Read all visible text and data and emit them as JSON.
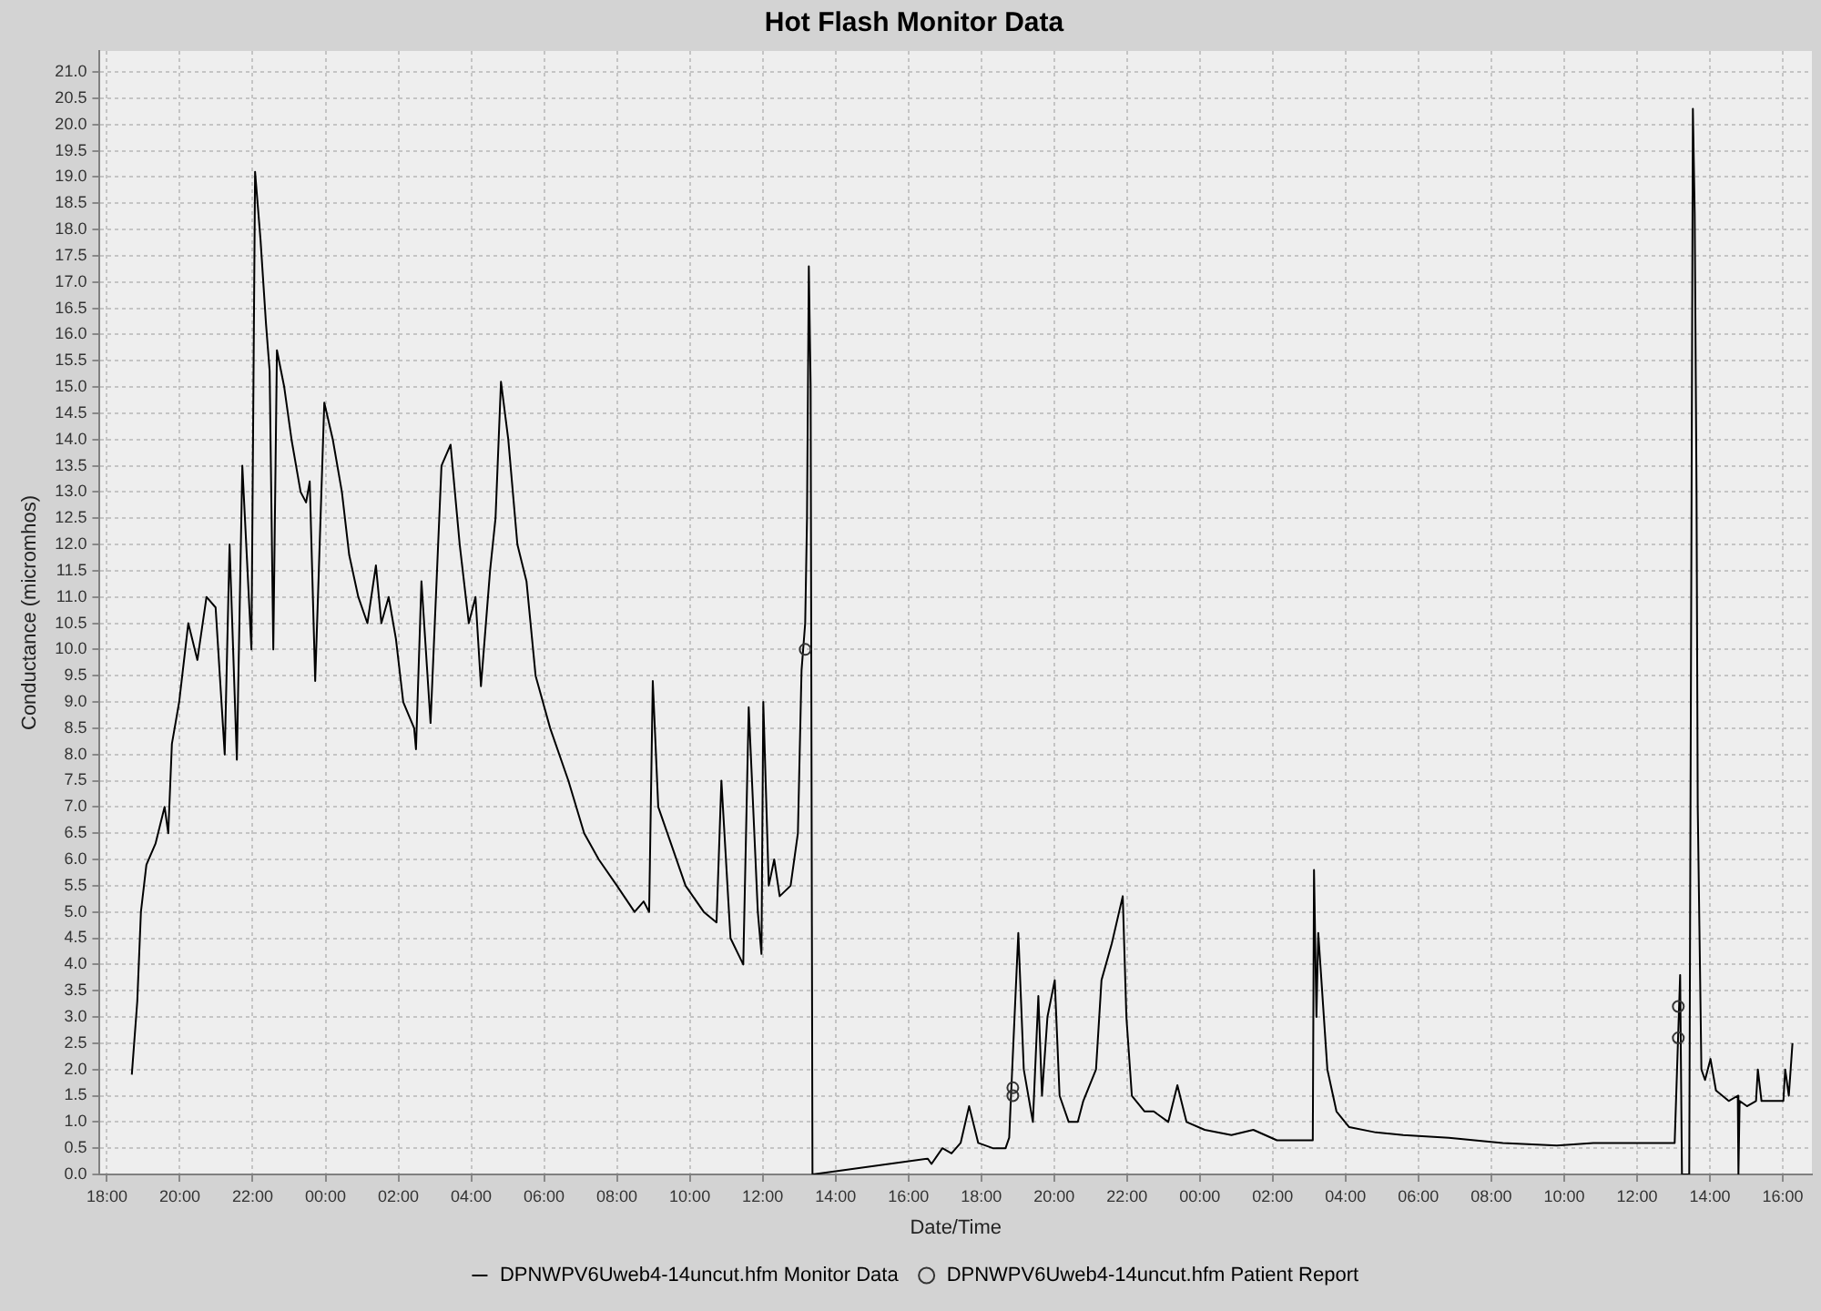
{
  "chart_data": {
    "type": "line",
    "title": "Hot Flash Monitor Data",
    "xlabel": "Date/Time",
    "ylabel": "Conductance (micromhos)",
    "xlim": [
      "--01-01T17:48",
      "--01-03T16:48"
    ],
    "ylim": [
      0,
      21.4
    ],
    "xticks": [
      {
        "value": "--01-01T18:00",
        "label": "18:00"
      },
      {
        "value": "--01-01T20:00",
        "label": "20:00"
      },
      {
        "value": "--01-01T22:00",
        "label": "22:00"
      },
      {
        "value": "--01-02T00:00",
        "label": "00:00"
      },
      {
        "value": "--01-02T02:00",
        "label": "02:00"
      },
      {
        "value": "--01-02T04:00",
        "label": "04:00"
      },
      {
        "value": "--01-02T06:00",
        "label": "06:00"
      },
      {
        "value": "--01-02T08:00",
        "label": "08:00"
      },
      {
        "value": "--01-02T10:00",
        "label": "10:00"
      },
      {
        "value": "--01-02T12:00",
        "label": "12:00"
      },
      {
        "value": "--01-02T14:00",
        "label": "14:00"
      },
      {
        "value": "--01-02T16:00",
        "label": "16:00"
      },
      {
        "value": "--01-02T18:00",
        "label": "18:00"
      },
      {
        "value": "--01-02T20:00",
        "label": "20:00"
      },
      {
        "value": "--01-02T22:00",
        "label": "22:00"
      },
      {
        "value": "--01-03T00:00",
        "label": "00:00"
      },
      {
        "value": "--01-03T02:00",
        "label": "02:00"
      },
      {
        "value": "--01-03T04:00",
        "label": "04:00"
      },
      {
        "value": "--01-03T06:00",
        "label": "06:00"
      },
      {
        "value": "--01-03T08:00",
        "label": "08:00"
      },
      {
        "value": "--01-03T10:00",
        "label": "10:00"
      },
      {
        "value": "--01-03T12:00",
        "label": "12:00"
      },
      {
        "value": "--01-03T14:00",
        "label": "14:00"
      },
      {
        "value": "--01-03T16:00",
        "label": "16:00"
      }
    ],
    "yticks": [
      {
        "value": 0,
        "label": "0.0"
      },
      {
        "value": 0.5,
        "label": "0.5"
      },
      {
        "value": 1,
        "label": "1.0"
      },
      {
        "value": 1.5,
        "label": "1.5"
      },
      {
        "value": 2,
        "label": "2.0"
      },
      {
        "value": 2.5,
        "label": "2.5"
      },
      {
        "value": 3,
        "label": "3.0"
      },
      {
        "value": 3.5,
        "label": "3.5"
      },
      {
        "value": 4,
        "label": "4.0"
      },
      {
        "value": 4.5,
        "label": "4.5"
      },
      {
        "value": 5,
        "label": "5.0"
      },
      {
        "value": 5.5,
        "label": "5.5"
      },
      {
        "value": 6,
        "label": "6.0"
      },
      {
        "value": 6.5,
        "label": "6.5"
      },
      {
        "value": 7,
        "label": "7.0"
      },
      {
        "value": 7.5,
        "label": "7.5"
      },
      {
        "value": 8,
        "label": "8.0"
      },
      {
        "value": 8.5,
        "label": "8.5"
      },
      {
        "value": 9,
        "label": "9.0"
      },
      {
        "value": 9.5,
        "label": "9.5"
      },
      {
        "value": 10,
        "label": "10.0"
      },
      {
        "value": 10.5,
        "label": "10.5"
      },
      {
        "value": 11,
        "label": "11.0"
      },
      {
        "value": 11.5,
        "label": "11.5"
      },
      {
        "value": 12,
        "label": "12.0"
      },
      {
        "value": 12.5,
        "label": "12.5"
      },
      {
        "value": 13,
        "label": "13.0"
      },
      {
        "value": 13.5,
        "label": "13.5"
      },
      {
        "value": 14,
        "label": "14.0"
      },
      {
        "value": 14.5,
        "label": "14.5"
      },
      {
        "value": 15,
        "label": "15.0"
      },
      {
        "value": 15.5,
        "label": "15.5"
      },
      {
        "value": 16,
        "label": "16.0"
      },
      {
        "value": 16.5,
        "label": "16.5"
      },
      {
        "value": 17,
        "label": "17.0"
      },
      {
        "value": 17.5,
        "label": "17.5"
      },
      {
        "value": 18,
        "label": "18.0"
      },
      {
        "value": 18.5,
        "label": "18.5"
      },
      {
        "value": 19,
        "label": "19.0"
      },
      {
        "value": 19.5,
        "label": "19.5"
      },
      {
        "value": 20,
        "label": "20.0"
      },
      {
        "value": 20.5,
        "label": "20.5"
      },
      {
        "value": 21,
        "label": "21.0"
      }
    ],
    "grid": true,
    "legend": "bottom",
    "line_style": "solid",
    "series": [
      {
        "name": "DPNWPV6Uweb4-14uncut.hfm Monitor Data",
        "type": "line",
        "marker": "none",
        "color": "#000000",
        "x": [
          "--01-01T18:41",
          "--01-01T18:50",
          "--01-01T18:56",
          "--01-01T19:05",
          "--01-01T19:20",
          "--01-01T19:35",
          "--01-01T19:41",
          "--01-01T19:47",
          "--01-01T19:59",
          "--01-01T20:14",
          "--01-01T20:29",
          "--01-01T20:44",
          "--01-01T20:59",
          "--01-01T21:14",
          "--01-01T21:22",
          "--01-01T21:34",
          "--01-01T21:43",
          "--01-01T21:58",
          "--01-01T22:04",
          "--01-01T22:13",
          "--01-01T22:22",
          "--01-01T22:28",
          "--01-01T22:34",
          "--01-01T22:40",
          "--01-01T22:52",
          "--01-01T23:04",
          "--01-01T23:19",
          "--01-01T23:28",
          "--01-01T23:34",
          "--01-01T23:43",
          "--01-01T23:49",
          "--01-01T23:58",
          "--01-02T00:12",
          "--01-02T00:27",
          "--01-02T00:39",
          "--01-02T00:54",
          "--01-02T01:09",
          "--01-02T01:23",
          "--01-02T01:32",
          "--01-02T01:44",
          "--01-02T01:56",
          "--01-02T02:08",
          "--01-02T02:26",
          "--01-02T02:29",
          "--01-02T02:38",
          "--01-02T02:53",
          "--01-02T03:11",
          "--01-02T03:26",
          "--01-02T03:41",
          "--01-02T03:56",
          "--01-02T04:07",
          "--01-02T04:16",
          "--01-02T04:31",
          "--01-02T04:40",
          "--01-02T04:49",
          "--01-02T05:01",
          "--01-02T05:16",
          "--01-02T05:31",
          "--01-02T05:46",
          "--01-02T06:10",
          "--01-02T06:40",
          "--01-02T07:06",
          "--01-02T07:30",
          "--01-02T08:00",
          "--01-02T08:29",
          "--01-02T08:44",
          "--01-02T08:53",
          "--01-02T08:59",
          "--01-02T09:08",
          "--01-02T09:23",
          "--01-02T09:53",
          "--01-02T10:23",
          "--01-02T10:44",
          "--01-02T10:52",
          "--01-02T11:07",
          "--01-02T11:28",
          "--01-02T11:37",
          "--01-02T11:52",
          "--01-02T11:58",
          "--01-02T12:01",
          "--01-02T12:10",
          "--01-02T12:19",
          "--01-02T12:28",
          "--01-02T12:46",
          "--01-02T12:58",
          "--01-02T13:04",
          "--01-02T13:10",
          "--01-02T13:13",
          "--01-02T13:16",
          "--01-02T13:19",
          "--01-02T13:22",
          "--01-02T13:24",
          "--01-02T16:32",
          "--01-02T16:38",
          "--01-02T16:56",
          "--01-02T17:11",
          "--01-02T17:26",
          "--01-02T17:40",
          "--01-02T17:55",
          "--01-02T18:19",
          "--01-02T18:40",
          "--01-02T18:46",
          "--01-02T18:49",
          "--01-02T19:01",
          "--01-02T19:10",
          "--01-02T19:25",
          "--01-02T19:34",
          "--01-02T19:40",
          "--01-02T19:49",
          "--01-02T20:01",
          "--01-02T20:09",
          "--01-02T20:24",
          "--01-02T20:39",
          "--01-02T20:48",
          "--01-02T21:09",
          "--01-02T21:18",
          "--01-02T21:35",
          "--01-02T21:53",
          "--01-02T21:59",
          "--01-02T22:08",
          "--01-02T22:29",
          "--01-02T22:44",
          "--01-02T23:08",
          "--01-02T23:23",
          "--01-02T23:38",
          "--01-03T00:08",
          "--01-03T00:52",
          "--01-03T01:28",
          "--01-03T02:07",
          "--01-03T03:06",
          "--01-03T03:08",
          "--01-03T03:12",
          "--01-03T03:15",
          "--01-03T03:30",
          "--01-03T03:45",
          "--01-03T04:06",
          "--01-03T04:50",
          "--01-03T05:35",
          "--01-03T06:50",
          "--01-03T08:19",
          "--01-03T09:48",
          "--01-03T10:48",
          "--01-03T12:47",
          "--01-03T13:02",
          "--01-03T13:11",
          "--01-03T13:14",
          "--01-03T13:26",
          "--01-03T13:32",
          "--01-03T13:35",
          "--01-03T13:38",
          "--01-03T13:40",
          "--01-03T13:46",
          "--01-03T13:52",
          "--01-03T14:01",
          "--01-03T14:10",
          "--01-03T14:31",
          "--01-03T14:46",
          "--01-03T14:47",
          "--01-03T14:49",
          "--01-03T15:01",
          "--01-03T15:16",
          "--01-03T15:19",
          "--01-03T15:25",
          "--01-03T15:46",
          "--01-03T16:01",
          "--01-03T16:04",
          "--01-03T16:10",
          "--01-03T16:16"
        ],
        "values": [
          1.9,
          3.3,
          5.0,
          5.9,
          6.3,
          7.0,
          6.5,
          8.2,
          9.0,
          10.5,
          9.8,
          11.0,
          10.8,
          8.0,
          12.0,
          7.9,
          13.5,
          10.0,
          19.1,
          17.8,
          16.2,
          15.3,
          10.0,
          15.7,
          15.0,
          14.0,
          13.0,
          12.8,
          13.2,
          9.4,
          11.5,
          14.7,
          14.0,
          13.0,
          11.8,
          11.0,
          10.5,
          11.6,
          10.5,
          11.0,
          10.2,
          9.0,
          8.5,
          8.1,
          11.3,
          8.6,
          13.5,
          13.9,
          12.0,
          10.5,
          11.0,
          9.3,
          11.5,
          12.5,
          15.1,
          14.0,
          12.0,
          11.3,
          9.5,
          8.5,
          7.5,
          6.5,
          6.0,
          5.5,
          5.0,
          5.2,
          5.0,
          9.4,
          7.0,
          6.5,
          5.5,
          5.0,
          4.8,
          7.5,
          4.5,
          4.0,
          8.9,
          5.0,
          4.2,
          9.0,
          5.5,
          6.0,
          5.3,
          5.5,
          6.5,
          9.6,
          10.5,
          12.5,
          17.3,
          15.0,
          0.0,
          0.0,
          0.3,
          0.2,
          0.5,
          0.4,
          0.6,
          1.3,
          0.6,
          0.5,
          0.5,
          0.7,
          1.5,
          4.6,
          2.0,
          1.0,
          3.4,
          1.5,
          3.0,
          3.7,
          1.5,
          1.0,
          1.0,
          1.4,
          2.0,
          3.7,
          4.4,
          5.3,
          3.0,
          1.5,
          1.2,
          1.2,
          1.0,
          1.7,
          1.0,
          0.85,
          0.75,
          0.85,
          0.65,
          0.65,
          5.8,
          3.0,
          4.6,
          2.0,
          1.2,
          0.9,
          0.8,
          0.75,
          0.7,
          0.6,
          0.55,
          0.6,
          0.6,
          0.6,
          3.8,
          0.0,
          0.0,
          20.3,
          18.3,
          13.0,
          7.0,
          2.0,
          1.8,
          2.2,
          1.6,
          1.4,
          1.5,
          0.0,
          1.4,
          1.3,
          1.4,
          2.0,
          1.4,
          1.4,
          1.4,
          2.0,
          1.5,
          2.5
        ]
      },
      {
        "name": "DPNWPV6Uweb4-14uncut.hfm Patient Report",
        "type": "scatter",
        "marker": "circle",
        "color": "#333333",
        "x": [
          "--01-02T13:10",
          "--01-02T18:52",
          "--01-02T18:52",
          "--01-03T13:08",
          "--01-03T13:08"
        ],
        "values": [
          10.0,
          1.5,
          1.65,
          3.2,
          2.6
        ]
      }
    ]
  }
}
